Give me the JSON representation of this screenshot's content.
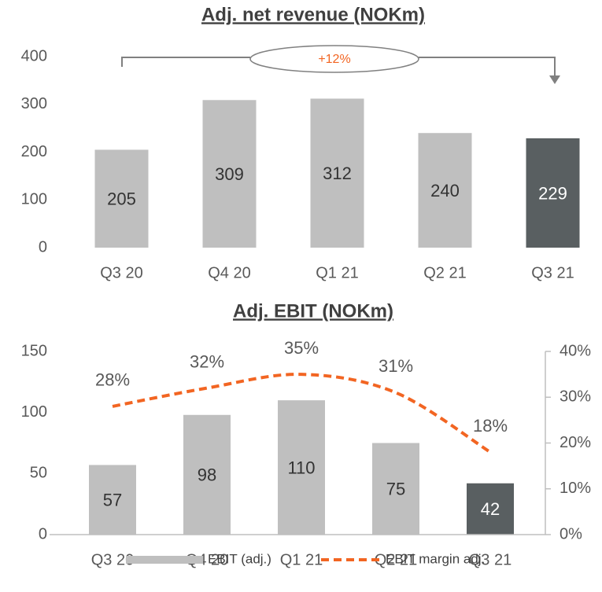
{
  "chart_data": [
    {
      "type": "bar",
      "title": "Adj. net revenue (NOKm)",
      "categories": [
        "Q3 20",
        "Q4 20",
        "Q1 21",
        "Q2 21",
        "Q3 21"
      ],
      "values": [
        205,
        309,
        312,
        240,
        229
      ],
      "colors": [
        "#bfbfbf",
        "#bfbfbf",
        "#bfbfbf",
        "#bfbfbf",
        "#595f61"
      ],
      "ylim": [
        0,
        400
      ],
      "yticks": [
        0,
        100,
        200,
        300,
        400
      ],
      "grid": false,
      "annotation": "+12%"
    },
    {
      "type": "bar_line",
      "title": "Adj. EBIT (NOKm)",
      "categories": [
        "Q3 20",
        "Q4 20",
        "Q1 21",
        "Q2 21",
        "Q3 21"
      ],
      "series": [
        {
          "name": "EBIT (adj.)",
          "type": "bar",
          "color": "#bfbfbf",
          "colors": [
            "#bfbfbf",
            "#bfbfbf",
            "#bfbfbf",
            "#bfbfbf",
            "#595f61"
          ],
          "values": [
            57,
            98,
            110,
            75,
            42
          ]
        },
        {
          "name": "EBIT margin adj.",
          "type": "line",
          "axis": "y2",
          "color": "#f26522",
          "values": [
            28,
            32,
            35,
            31,
            18
          ],
          "value_labels": [
            "28%",
            "32%",
            "35%",
            "31%",
            "18%"
          ]
        }
      ],
      "ylim": [
        0,
        150
      ],
      "yticks": [
        0,
        50,
        100,
        150
      ],
      "y2lim": [
        0,
        40
      ],
      "y2ticks": [
        {
          "value": 0,
          "label": "0%"
        },
        {
          "value": 10,
          "label": "10%"
        },
        {
          "value": 20,
          "label": "20%"
        },
        {
          "value": 30,
          "label": "30%"
        },
        {
          "value": 40,
          "label": "40%"
        }
      ],
      "grid": false,
      "legend": "bottom"
    }
  ]
}
